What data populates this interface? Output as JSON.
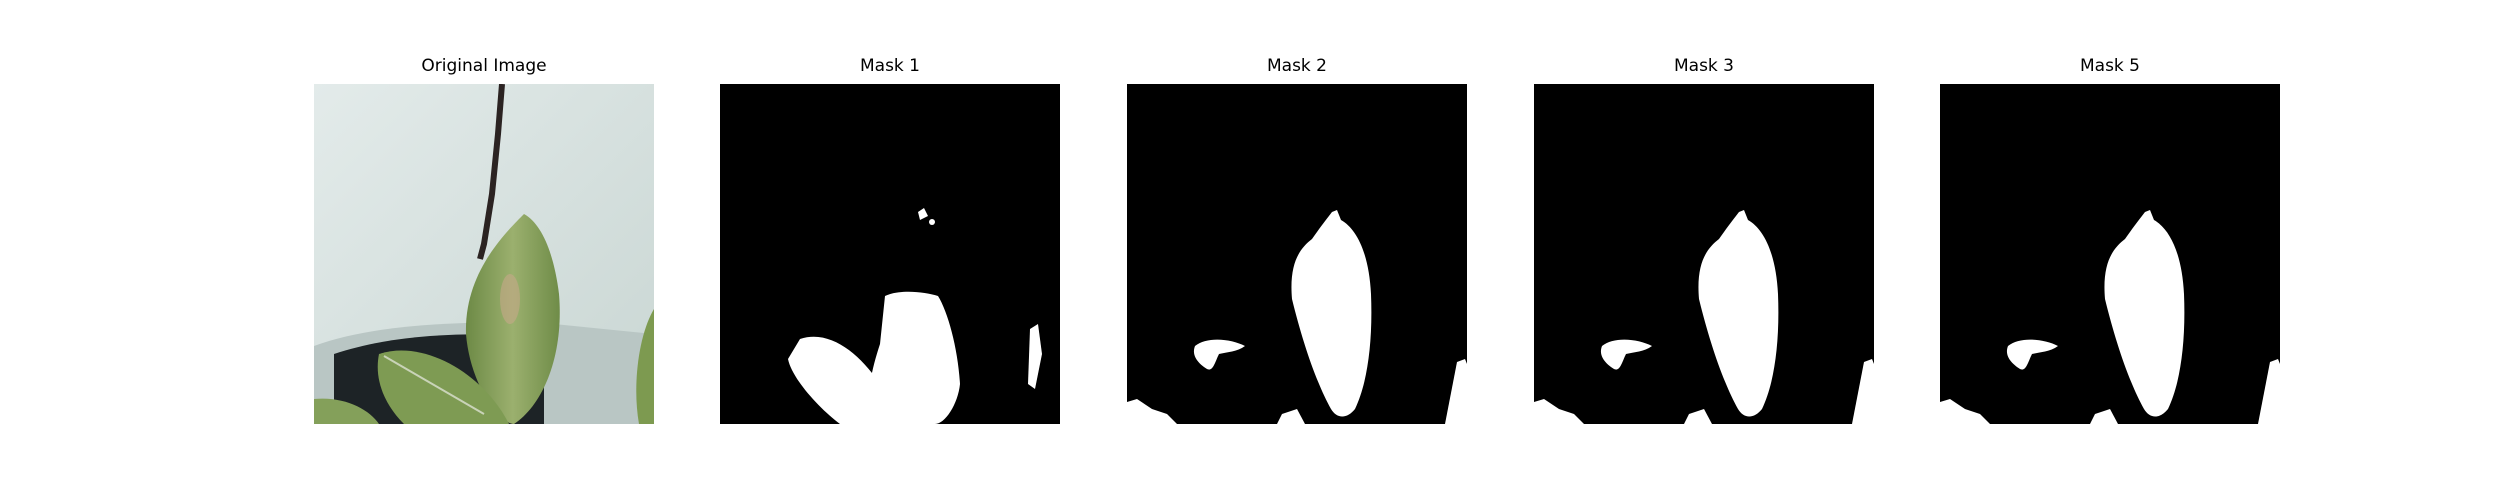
{
  "panels": [
    {
      "title": "Original Image",
      "image": "leaf-photo"
    },
    {
      "title": "Mask 1",
      "image": "binary-mask"
    },
    {
      "title": "Mask 2",
      "image": "binary-mask"
    },
    {
      "title": "Mask 3",
      "image": "binary-mask"
    },
    {
      "title": "Mask 5",
      "image": "binary-mask"
    }
  ],
  "colors": {
    "background": "#ffffff",
    "mask_fg": "#ffffff",
    "mask_bg": "#000000",
    "leaf": "#7f9b55",
    "wall": "#dfe8e6"
  }
}
